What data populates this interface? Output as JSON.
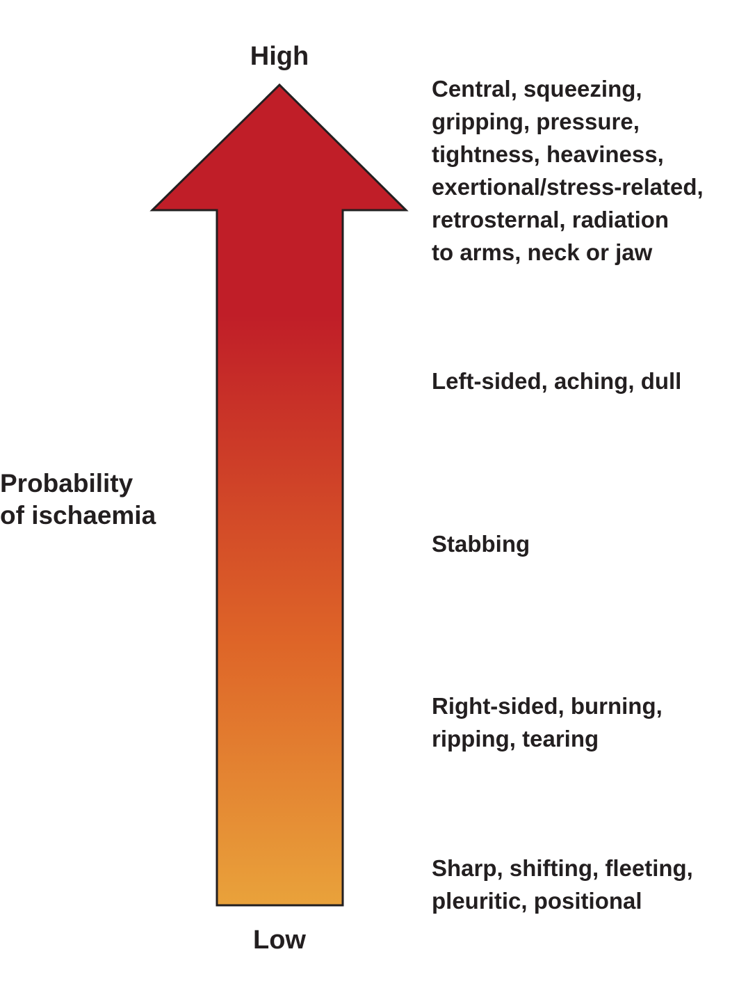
{
  "scale": {
    "high_label": "High",
    "low_label": "Low",
    "title_lines": [
      "Probability",
      "of ischaemia"
    ]
  },
  "colors": {
    "arrow_top": "#c01e28",
    "arrow_mid": "#de6528",
    "arrow_bottom": "#e9a23b",
    "outline": "#231f20",
    "text": "#231f20"
  },
  "descriptors": [
    {
      "lines": [
        "Central, squeezing,",
        "gripping, pressure,",
        "tightness, heaviness,",
        "exertional/stress-related,",
        "retrosternal, radiation",
        "to arms, neck or jaw"
      ]
    },
    {
      "lines": [
        "Left-sided, aching, dull"
      ]
    },
    {
      "lines": [
        "Stabbing"
      ]
    },
    {
      "lines": [
        "Right-sided, burning,",
        "ripping, tearing"
      ]
    },
    {
      "lines": [
        "Sharp, shifting, fleeting,",
        "pleuritic, positional"
      ]
    }
  ]
}
